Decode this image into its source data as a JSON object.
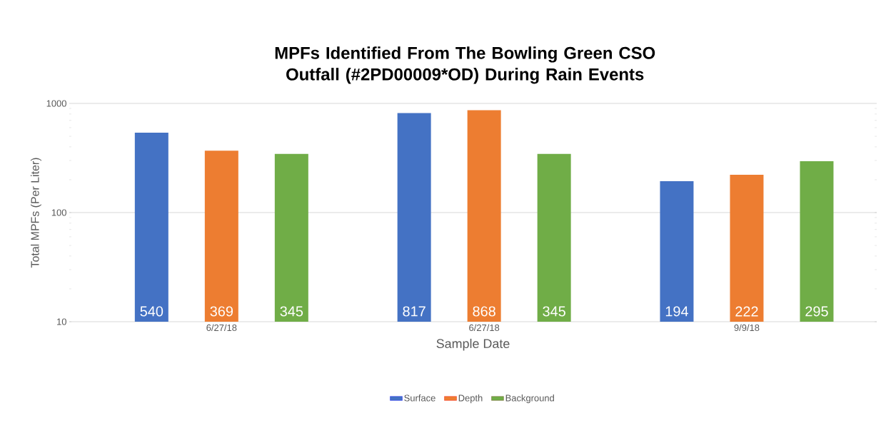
{
  "chart_data": {
    "type": "bar",
    "title": "MPFs Identified From The Bowling Green CSO Outfall (#2PD00009*OD) During Rain Events",
    "xlabel": "Sample Date",
    "ylabel": "Total MPFs (Per Liter)",
    "categories": [
      "6/27/18",
      "6/27/18",
      "9/9/18"
    ],
    "series": [
      {
        "name": "Surface",
        "color": "#4472c4",
        "values": [
          540,
          817,
          194
        ]
      },
      {
        "name": "Depth",
        "color": "#ed7d31",
        "values": [
          369,
          868,
          222
        ]
      },
      {
        "name": "Background",
        "color": "#70ad47",
        "values": [
          345,
          345,
          295
        ]
      }
    ],
    "log": "y",
    "ylim": [
      10,
      1000
    ],
    "yticks": [
      10,
      100,
      1000
    ],
    "grid": "y",
    "legend": "bottom",
    "data_labels": true
  }
}
